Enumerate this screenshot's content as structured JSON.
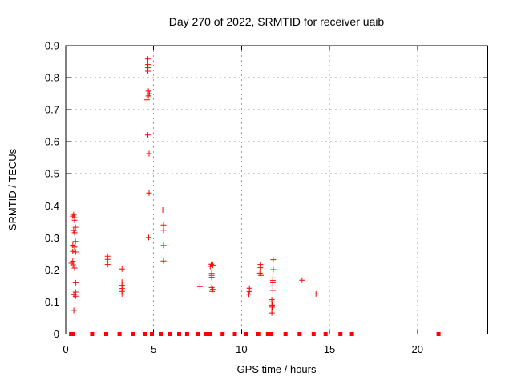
{
  "chart_data": {
    "type": "scatter",
    "title": "Day 270 of 2022, SRMTID for receiver uaib",
    "xlabel": "GPS time / hours",
    "ylabel": "SRMTID / TECUs",
    "xlim": [
      0,
      24
    ],
    "ylim": [
      0,
      0.9
    ],
    "grid": true,
    "legend": "none",
    "marker": {
      "shape": "plus",
      "color": "#ff0000",
      "zero_cluster_shape": "bold-plus"
    },
    "xticks": {
      "values": [
        0,
        5,
        10,
        15,
        20
      ],
      "labels": [
        "0",
        "5",
        "10",
        "15",
        "20"
      ]
    },
    "yticks": {
      "values": [
        0,
        0.1,
        0.2,
        0.3,
        0.4,
        0.5,
        0.6,
        0.7,
        0.8,
        0.9
      ],
      "labels": [
        "0",
        "0.1",
        "0.2",
        "0.3",
        "0.4",
        "0.5",
        "0.6",
        "0.7",
        "0.8",
        "0.9"
      ]
    },
    "series": [
      {
        "name": "SRMTID",
        "points": [
          [
            0.45,
            0.373
          ],
          [
            0.4,
            0.368
          ],
          [
            0.5,
            0.363
          ],
          [
            0.5,
            0.355
          ],
          [
            0.55,
            0.333
          ],
          [
            0.45,
            0.323
          ],
          [
            0.5,
            0.316
          ],
          [
            0.55,
            0.289
          ],
          [
            0.4,
            0.277
          ],
          [
            0.5,
            0.271
          ],
          [
            0.4,
            0.258
          ],
          [
            0.56,
            0.256
          ],
          [
            0.4,
            0.227
          ],
          [
            0.32,
            0.221
          ],
          [
            0.42,
            0.216
          ],
          [
            0.5,
            0.206
          ],
          [
            0.56,
            0.16
          ],
          [
            0.56,
            0.131
          ],
          [
            0.46,
            0.123
          ],
          [
            0.56,
            0.118
          ],
          [
            0.46,
            0.074
          ],
          [
            2.38,
            0.243
          ],
          [
            2.38,
            0.233
          ],
          [
            2.38,
            0.225
          ],
          [
            2.38,
            0.217
          ],
          [
            3.2,
            0.203
          ],
          [
            3.2,
            0.162
          ],
          [
            3.2,
            0.152
          ],
          [
            3.2,
            0.142
          ],
          [
            3.2,
            0.133
          ],
          [
            3.2,
            0.125
          ],
          [
            4.67,
            0.858
          ],
          [
            4.67,
            0.841
          ],
          [
            4.67,
            0.831
          ],
          [
            4.67,
            0.82
          ],
          [
            4.7,
            0.758
          ],
          [
            4.76,
            0.75
          ],
          [
            4.7,
            0.743
          ],
          [
            4.62,
            0.731
          ],
          [
            4.67,
            0.621
          ],
          [
            4.74,
            0.563
          ],
          [
            4.74,
            0.44
          ],
          [
            4.72,
            0.301
          ],
          [
            5.52,
            0.387
          ],
          [
            5.56,
            0.34
          ],
          [
            5.56,
            0.324
          ],
          [
            5.56,
            0.276
          ],
          [
            5.56,
            0.228
          ],
          [
            7.63,
            0.148
          ],
          [
            8.28,
            0.218
          ],
          [
            8.36,
            0.215
          ],
          [
            8.22,
            0.211
          ],
          [
            8.3,
            0.189
          ],
          [
            8.3,
            0.183
          ],
          [
            8.3,
            0.177
          ],
          [
            8.3,
            0.145
          ],
          [
            8.36,
            0.139
          ],
          [
            8.32,
            0.133
          ],
          [
            10.45,
            0.143
          ],
          [
            10.45,
            0.132
          ],
          [
            10.42,
            0.124
          ],
          [
            11.07,
            0.217
          ],
          [
            11.07,
            0.207
          ],
          [
            11.04,
            0.19
          ],
          [
            11.1,
            0.183
          ],
          [
            11.8,
            0.232
          ],
          [
            11.8,
            0.201
          ],
          [
            11.78,
            0.175
          ],
          [
            11.78,
            0.167
          ],
          [
            11.78,
            0.16
          ],
          [
            11.78,
            0.15
          ],
          [
            11.78,
            0.136
          ],
          [
            11.72,
            0.107
          ],
          [
            11.72,
            0.1
          ],
          [
            11.74,
            0.09
          ],
          [
            11.74,
            0.084
          ],
          [
            11.72,
            0.075
          ],
          [
            11.72,
            0.066
          ],
          [
            13.44,
            0.168
          ],
          [
            14.23,
            0.125
          ]
        ]
      }
    ],
    "zero_time_clusters": [
      0.3,
      0.42,
      1.5,
      2.3,
      3.06,
      3.85,
      4.5,
      4.9,
      5.4,
      5.92,
      6.45,
      6.9,
      7.5,
      8.0,
      8.2,
      8.92,
      9.62,
      10.28,
      10.95,
      11.5,
      11.68,
      12.5,
      13.3,
      14.1,
      14.78,
      15.62,
      16.28,
      21.2
    ]
  }
}
